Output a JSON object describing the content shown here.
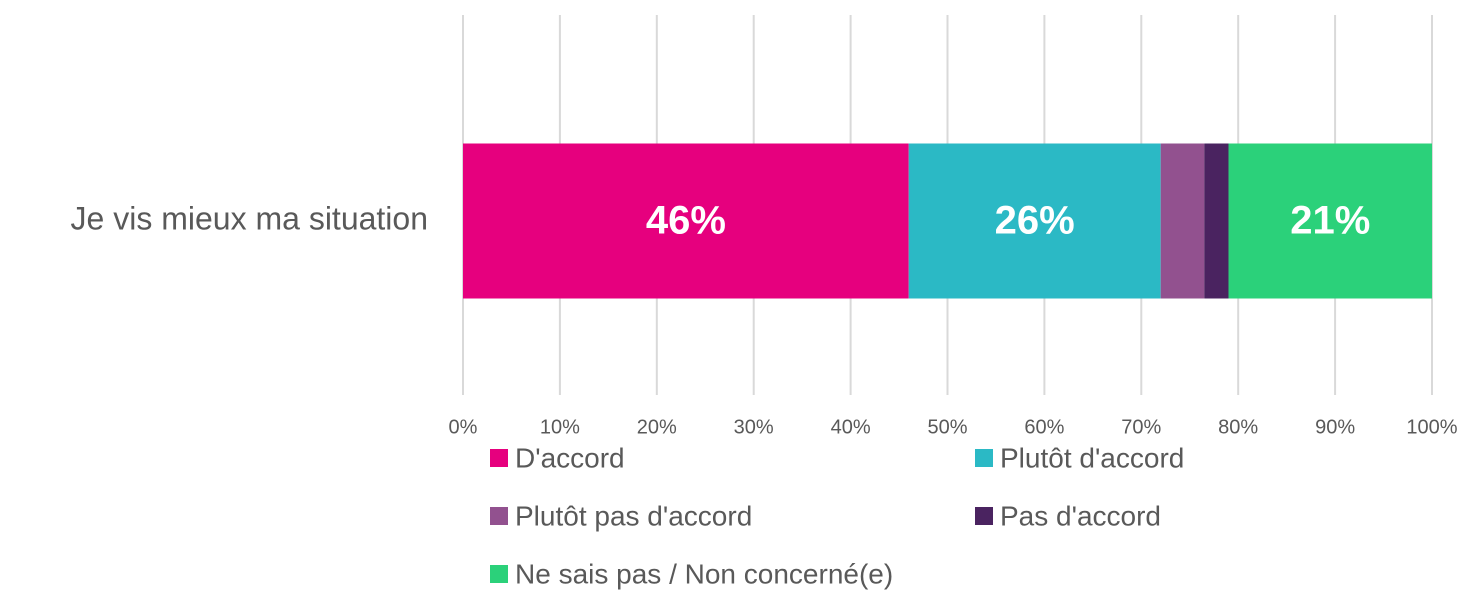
{
  "chart_data": {
    "type": "stacked-bar-horizontal",
    "categories": [
      "Je vis mieux ma situation"
    ],
    "series": [
      {
        "name": "D'accord",
        "color": "#e6007e",
        "values": [
          46
        ],
        "value_labels": [
          "46%"
        ]
      },
      {
        "name": "Plutôt d'accord",
        "color": "#2bb9c5",
        "values": [
          26
        ],
        "value_labels": [
          "26%"
        ]
      },
      {
        "name": "Plutôt pas d'accord",
        "color": "#92518f",
        "values": [
          4.5
        ],
        "value_labels": [
          null
        ]
      },
      {
        "name": "Pas d'accord",
        "color": "#4a2360",
        "values": [
          2.5
        ],
        "value_labels": [
          null
        ]
      },
      {
        "name": "Ne sais pas / Non concerné(e)",
        "color": "#2bd17a",
        "values": [
          21
        ],
        "value_labels": [
          "21%"
        ]
      }
    ],
    "xlim": [
      0,
      100
    ],
    "xticks": [
      {
        "value": 0,
        "label": "0%"
      },
      {
        "value": 10,
        "label": "10%"
      },
      {
        "value": 20,
        "label": "20%"
      },
      {
        "value": 30,
        "label": "30%"
      },
      {
        "value": 40,
        "label": "40%"
      },
      {
        "value": 50,
        "label": "50%"
      },
      {
        "value": 60,
        "label": "60%"
      },
      {
        "value": 70,
        "label": "70%"
      },
      {
        "value": 80,
        "label": "80%"
      },
      {
        "value": 90,
        "label": "90%"
      },
      {
        "value": 100,
        "label": "100%"
      }
    ],
    "grid": true,
    "legend": "bottom"
  }
}
